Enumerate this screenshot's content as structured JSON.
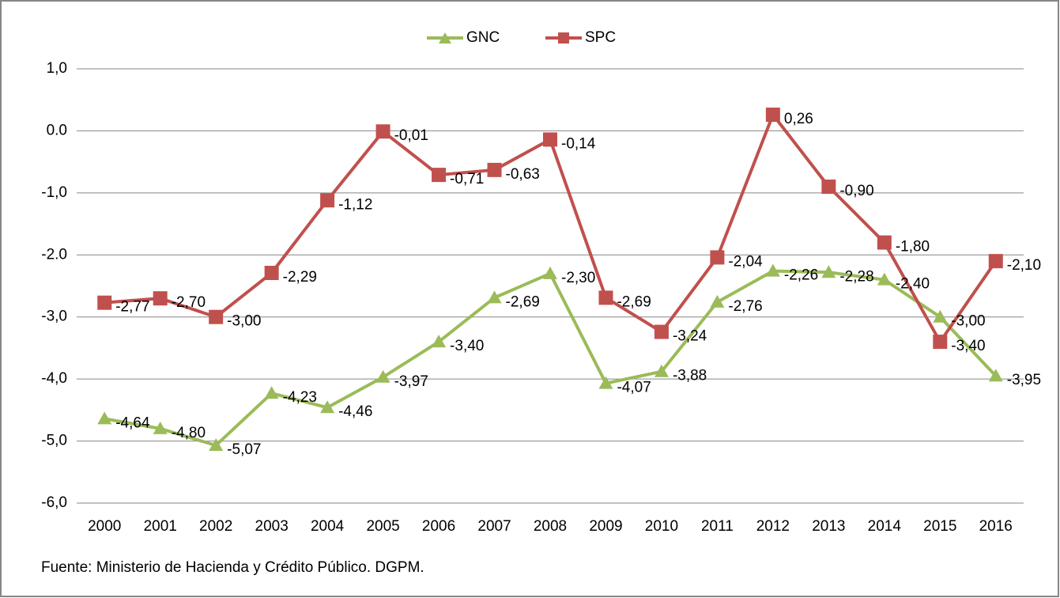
{
  "chart_data": {
    "type": "line",
    "categories": [
      "2000",
      "2001",
      "2002",
      "2003",
      "2004",
      "2005",
      "2006",
      "2007",
      "2008",
      "2009",
      "2010",
      "2011",
      "2012",
      "2013",
      "2014",
      "2015",
      "2016"
    ],
    "series": [
      {
        "name": "GNC",
        "color": "#9bbb59",
        "marker": "triangle",
        "values": [
          -4.64,
          -4.8,
          -5.07,
          -4.23,
          -4.46,
          -3.97,
          -3.4,
          -2.69,
          -2.3,
          -4.07,
          -3.88,
          -2.76,
          -2.26,
          -2.28,
          -2.4,
          -3.0,
          -3.95
        ],
        "value_labels": [
          "-4,64",
          "-4,80",
          "-5,07",
          "-4,23",
          "-4,46",
          "-3,97",
          "-3,40",
          "-2,69",
          "-2,30",
          "-4,07",
          "-3,88",
          "-2,76",
          "-2,26",
          "-2,28",
          "-2,40",
          "-3,00",
          "-3,95"
        ]
      },
      {
        "name": "SPC",
        "color": "#c0504d",
        "marker": "square",
        "values": [
          -2.77,
          -2.7,
          -3.0,
          -2.29,
          -1.12,
          -0.01,
          -0.71,
          -0.63,
          -0.14,
          -2.69,
          -3.24,
          -2.04,
          0.26,
          -0.9,
          -1.8,
          -3.4,
          -2.1
        ],
        "value_labels": [
          "-2,77",
          "-2,70",
          "-3,00",
          "-2,29",
          "-1,12",
          "-0,01",
          "-0,71",
          "-0,63",
          "-0,14",
          "-2,69",
          "-3,24",
          "-2,04",
          "0,26",
          "-0,90",
          "-1,80",
          "-3,40",
          "-2,10"
        ]
      }
    ],
    "ylim": [
      -6,
      1
    ],
    "yticks": [
      {
        "value": -6,
        "label": "-6,0"
      },
      {
        "value": -5,
        "label": "-5,0"
      },
      {
        "value": -4,
        "label": "-4,0"
      },
      {
        "value": -3,
        "label": "-3,0"
      },
      {
        "value": -2,
        "label": "-2.0"
      },
      {
        "value": -1,
        "label": "-1,0"
      },
      {
        "value": 0,
        "label": "0.0"
      },
      {
        "value": 1,
        "label": "1,0"
      }
    ],
    "grid": true,
    "legend": "top",
    "source": "Fuente:  Ministerio de Hacienda y Crédito Público. DGPM."
  }
}
